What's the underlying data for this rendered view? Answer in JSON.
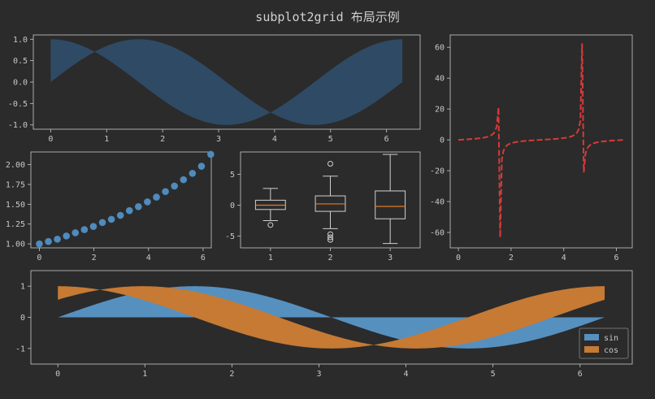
{
  "figure": {
    "title": "subplot2grid 布局示例",
    "background": "#2b2b2b",
    "axes_color": "#c8c8c8"
  },
  "chart_data": [
    {
      "id": "ax1",
      "type": "area",
      "description": "fill between sin(x) and cos(x)",
      "series": [
        {
          "values_y1": "sin(x)",
          "values_y2": "cos(x)",
          "color": "#2f4a64"
        }
      ],
      "x_range": [
        0,
        6.283
      ],
      "xlim": [
        -0.31,
        6.6
      ],
      "ylim": [
        -1.1,
        1.1
      ],
      "xticks": [
        0,
        1,
        2,
        3,
        4,
        5,
        6
      ],
      "yticks": [
        -1.0,
        -0.5,
        0.0,
        0.5,
        1.0
      ],
      "ytick_labels": [
        "-1.0",
        "-0.5",
        "0.0",
        "0.5",
        "1.0"
      ]
    },
    {
      "id": "ax2",
      "type": "line",
      "description": "tan(x), dashed red",
      "series": [
        {
          "formula": "tan(x)",
          "color": "#d63a3a",
          "style": "dashed"
        }
      ],
      "x_range": [
        0,
        6.283
      ],
      "xlim": [
        -0.31,
        6.6
      ],
      "ylim": [
        -70,
        68
      ],
      "xticks": [
        0,
        2,
        4,
        6
      ],
      "yticks": [
        -60,
        -40,
        -20,
        0,
        20,
        40,
        60
      ]
    },
    {
      "id": "ax3",
      "type": "scatter",
      "x": [
        0.0,
        0.33,
        0.66,
        0.99,
        1.32,
        1.65,
        1.98,
        2.31,
        2.64,
        2.97,
        3.3,
        3.63,
        3.96,
        4.29,
        4.62,
        4.95,
        5.28,
        5.61,
        5.94,
        6.28
      ],
      "y": [
        1.0,
        1.03,
        1.06,
        1.1,
        1.14,
        1.18,
        1.22,
        1.27,
        1.31,
        1.36,
        1.42,
        1.47,
        1.53,
        1.59,
        1.66,
        1.73,
        1.81,
        1.89,
        1.98,
        2.13
      ],
      "color": "#4f8bbd",
      "xlim": [
        -0.31,
        6.3
      ],
      "ylim": [
        0.95,
        2.16
      ],
      "xticks": [
        0,
        2,
        4,
        6
      ],
      "yticks": [
        1.0,
        1.25,
        1.5,
        1.75,
        2.0
      ],
      "ytick_labels": [
        "1.00",
        "1.25",
        "1.50",
        "1.75",
        "2.00"
      ]
    },
    {
      "id": "ax4",
      "type": "box",
      "categories": [
        "1",
        "2",
        "3"
      ],
      "boxes": [
        {
          "whislo": -2.5,
          "q1": -0.7,
          "med": 0.0,
          "q3": 0.8,
          "whishi": 2.7,
          "fliers": [
            -3.2
          ]
        },
        {
          "whislo": -3.8,
          "q1": -1.0,
          "med": 0.2,
          "q3": 1.5,
          "whishi": 4.7,
          "fliers": [
            6.7,
            -4.7,
            -5.2,
            -5.6
          ]
        },
        {
          "whislo": -6.2,
          "q1": -2.2,
          "med": -0.2,
          "q3": 2.3,
          "whishi": 8.2,
          "fliers": []
        }
      ],
      "xlim": [
        0.5,
        3.5
      ],
      "ylim": [
        -6.9,
        8.6
      ],
      "yticks": [
        -5,
        0,
        5
      ],
      "box_color": "#d0d0d0",
      "median_color": "#e07b2a"
    },
    {
      "id": "ax5",
      "type": "area",
      "series": [
        {
          "name": "sin",
          "formula": "fill sin(x) to 0",
          "color": "#5690bf"
        },
        {
          "name": "cos",
          "formula": "fill cos(x) to sin(x+0.6)",
          "color": "#c67a34"
        }
      ],
      "x_range": [
        0,
        6.283
      ],
      "xlim": [
        -0.31,
        6.6
      ],
      "ylim": [
        -1.5,
        1.5
      ],
      "xticks": [
        0,
        1,
        2,
        3,
        4,
        5,
        6
      ],
      "yticks": [
        -1,
        0,
        1
      ],
      "legend": "lower-right"
    }
  ]
}
